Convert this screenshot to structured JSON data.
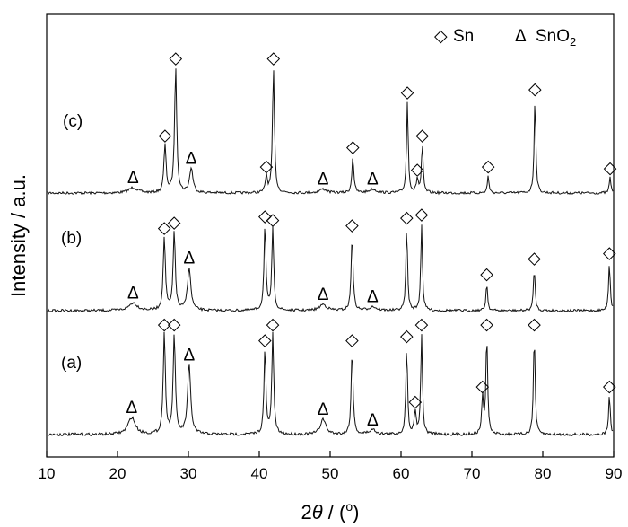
{
  "chart_data": {
    "type": "line",
    "xlabel": {
      "main": "2",
      "italic": "θ",
      "rest": " / (",
      "sup": "o",
      "close": ")"
    },
    "ylabel": "Intensity / a.u.",
    "xlim": [
      10,
      90
    ],
    "xticks": [
      10,
      20,
      30,
      40,
      50,
      60,
      70,
      80,
      90
    ],
    "legend": {
      "placement": "top-right",
      "entries": [
        {
          "symbol": "◇",
          "label": "Sn"
        },
        {
          "symbol": "Δ",
          "label_main": "SnO",
          "label_sub": "2"
        }
      ]
    },
    "series": [
      {
        "name": "(c)",
        "peaks": [
          {
            "x": 22.2,
            "h": 0.07,
            "w": 0.7,
            "phase": "SnO2"
          },
          {
            "x": 26.7,
            "h": 0.62,
            "w": 0.18,
            "phase": "Sn"
          },
          {
            "x": 28.2,
            "h": 1.62,
            "w": 0.18,
            "phase": "Sn"
          },
          {
            "x": 30.4,
            "h": 0.32,
            "w": 0.28,
            "phase": "SnO2"
          },
          {
            "x": 41.0,
            "h": 0.22,
            "w": 0.16,
            "phase": "Sn"
          },
          {
            "x": 42.0,
            "h": 1.62,
            "w": 0.16,
            "phase": "Sn"
          },
          {
            "x": 49.0,
            "h": 0.05,
            "w": 0.6,
            "phase": "SnO2"
          },
          {
            "x": 53.2,
            "h": 0.47,
            "w": 0.16,
            "phase": "Sn"
          },
          {
            "x": 56.0,
            "h": 0.05,
            "w": 0.6,
            "phase": "SnO2"
          },
          {
            "x": 60.9,
            "h": 1.18,
            "w": 0.14,
            "phase": "Sn"
          },
          {
            "x": 62.3,
            "h": 0.18,
            "w": 0.16,
            "phase": "Sn"
          },
          {
            "x": 63.0,
            "h": 0.62,
            "w": 0.14,
            "phase": "Sn"
          },
          {
            "x": 72.3,
            "h": 0.22,
            "w": 0.14,
            "phase": "Sn"
          },
          {
            "x": 78.9,
            "h": 1.22,
            "w": 0.14,
            "phase": "Sn"
          },
          {
            "x": 89.5,
            "h": 0.2,
            "w": 0.14,
            "phase": "Sn"
          }
        ]
      },
      {
        "name": "(b)",
        "peaks": [
          {
            "x": 22.2,
            "h": 0.1,
            "w": 0.7,
            "phase": "SnO2"
          },
          {
            "x": 26.6,
            "h": 0.95,
            "w": 0.18,
            "phase": "Sn"
          },
          {
            "x": 28.0,
            "h": 1.02,
            "w": 0.18,
            "phase": "Sn"
          },
          {
            "x": 30.1,
            "h": 0.55,
            "w": 0.28,
            "phase": "SnO2"
          },
          {
            "x": 40.8,
            "h": 1.1,
            "w": 0.16,
            "phase": "Sn"
          },
          {
            "x": 41.9,
            "h": 1.05,
            "w": 0.16,
            "phase": "Sn"
          },
          {
            "x": 49.0,
            "h": 0.08,
            "w": 0.6,
            "phase": "SnO2"
          },
          {
            "x": 53.1,
            "h": 0.98,
            "w": 0.16,
            "phase": "Sn"
          },
          {
            "x": 56.0,
            "h": 0.05,
            "w": 0.6,
            "phase": "SnO2"
          },
          {
            "x": 60.8,
            "h": 1.08,
            "w": 0.14,
            "phase": "Sn"
          },
          {
            "x": 62.9,
            "h": 1.12,
            "w": 0.14,
            "phase": "Sn"
          },
          {
            "x": 72.1,
            "h": 0.35,
            "w": 0.14,
            "phase": "Sn"
          },
          {
            "x": 78.8,
            "h": 0.55,
            "w": 0.14,
            "phase": "Sn"
          },
          {
            "x": 89.4,
            "h": 0.62,
            "w": 0.14,
            "phase": "Sn"
          }
        ]
      },
      {
        "name": "(a)",
        "peaks": [
          {
            "x": 22.0,
            "h": 0.22,
            "w": 0.6,
            "phase": "SnO2"
          },
          {
            "x": 26.6,
            "h": 1.3,
            "w": 0.18,
            "phase": "Sn"
          },
          {
            "x": 28.0,
            "h": 1.3,
            "w": 0.18,
            "phase": "Sn"
          },
          {
            "x": 30.1,
            "h": 0.9,
            "w": 0.26,
            "phase": "SnO2"
          },
          {
            "x": 40.8,
            "h": 1.1,
            "w": 0.16,
            "phase": "Sn"
          },
          {
            "x": 41.9,
            "h": 1.3,
            "w": 0.16,
            "phase": "Sn"
          },
          {
            "x": 49.0,
            "h": 0.2,
            "w": 0.45,
            "phase": "SnO2"
          },
          {
            "x": 53.1,
            "h": 1.1,
            "w": 0.16,
            "phase": "Sn"
          },
          {
            "x": 56.0,
            "h": 0.06,
            "w": 0.6,
            "phase": "SnO2"
          },
          {
            "x": 60.8,
            "h": 1.15,
            "w": 0.14,
            "phase": "Sn"
          },
          {
            "x": 62.0,
            "h": 0.3,
            "w": 0.16,
            "phase": "Sn"
          },
          {
            "x": 62.9,
            "h": 1.3,
            "w": 0.14,
            "phase": "Sn"
          },
          {
            "x": 71.5,
            "h": 0.5,
            "w": 0.14,
            "phase": "Sn"
          },
          {
            "x": 72.1,
            "h": 1.3,
            "w": 0.14,
            "phase": "Sn"
          },
          {
            "x": 78.8,
            "h": 1.3,
            "w": 0.14,
            "phase": "Sn"
          },
          {
            "x": 89.4,
            "h": 0.5,
            "w": 0.14,
            "phase": "Sn"
          }
        ]
      }
    ]
  }
}
